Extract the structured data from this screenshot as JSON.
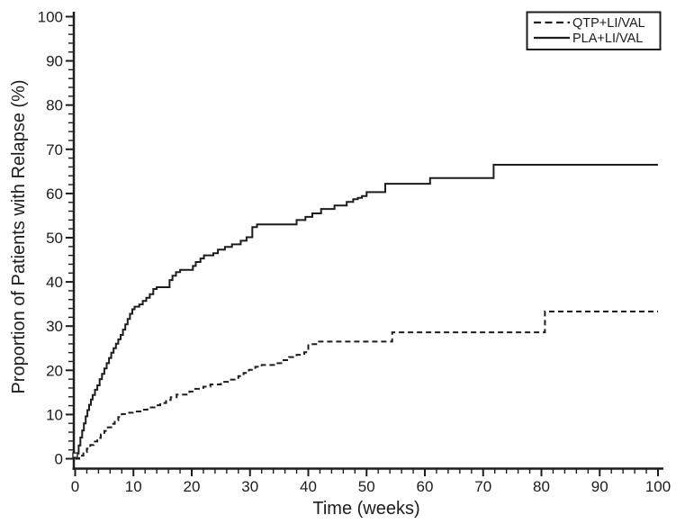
{
  "figure": {
    "background": "#ffffff",
    "ink_color": "#1c1c1c"
  },
  "chart_data": {
    "type": "line",
    "subtype": "kaplan-meier-step",
    "title": "",
    "xlabel": "Time (weeks)",
    "ylabel": "Proportion of Patients with Relapse (%)",
    "xlim": [
      0,
      100
    ],
    "ylim": [
      0,
      100
    ],
    "x_major_ticks": [
      0,
      10,
      20,
      30,
      40,
      50,
      60,
      70,
      80,
      90,
      100
    ],
    "y_major_ticks": [
      0,
      10,
      20,
      30,
      40,
      50,
      60,
      70,
      80,
      90,
      100
    ],
    "x_minor_step": 2,
    "y_minor_step": 2,
    "grid": false,
    "legend": {
      "position": "top-right",
      "border_color": "#1c1c1c",
      "entries": [
        "QTP+LI/VAL",
        "PLA+LI/VAL"
      ]
    },
    "origin_marker": {
      "shape": "open-square",
      "x": 0,
      "y": 0.8
    },
    "series": [
      {
        "name": "QTP+LI/VAL",
        "line_style": "dashed",
        "color": "#1c1c1c",
        "points": [
          [
            0,
            0
          ],
          [
            0.7,
            0.7
          ],
          [
            1.4,
            1.5
          ],
          [
            2,
            2.3
          ],
          [
            2.6,
            3.1
          ],
          [
            3.2,
            3.9
          ],
          [
            3.8,
            4.7
          ],
          [
            4.4,
            5.5
          ],
          [
            5,
            6.3
          ],
          [
            5.6,
            7.1
          ],
          [
            6.2,
            7.9
          ],
          [
            6.8,
            8.7
          ],
          [
            7.4,
            9.4
          ],
          [
            8,
            10.1
          ],
          [
            9,
            10.4
          ],
          [
            10.2,
            10.7
          ],
          [
            11.4,
            11.1
          ],
          [
            12.4,
            11.6
          ],
          [
            13.6,
            12.1
          ],
          [
            14.6,
            12.6
          ],
          [
            15.6,
            13.3
          ],
          [
            16.4,
            13.9
          ],
          [
            17.4,
            14.5
          ],
          [
            19.6,
            15.2
          ],
          [
            20.4,
            15.8
          ],
          [
            22,
            16.3
          ],
          [
            23.2,
            16.8
          ],
          [
            25,
            17.4
          ],
          [
            26.4,
            17.9
          ],
          [
            28,
            18.7
          ],
          [
            28.9,
            19.4
          ],
          [
            29.8,
            20.1
          ],
          [
            30.9,
            20.8
          ],
          [
            32,
            21.2
          ],
          [
            34.4,
            21.6
          ],
          [
            35.5,
            22.3
          ],
          [
            36.7,
            23
          ],
          [
            38,
            23.5
          ],
          [
            39.3,
            24.1
          ],
          [
            40,
            25.9
          ],
          [
            41.6,
            26.5
          ],
          [
            54.4,
            28.6
          ],
          [
            80.6,
            33.3
          ],
          [
            100,
            33.3
          ]
        ]
      },
      {
        "name": "PLA+LI/VAL",
        "line_style": "solid",
        "color": "#1c1c1c",
        "points": [
          [
            0,
            0
          ],
          [
            0.3,
            1.2
          ],
          [
            0.6,
            3
          ],
          [
            0.9,
            4.8
          ],
          [
            1.2,
            6.4
          ],
          [
            1.5,
            8
          ],
          [
            1.8,
            9.6
          ],
          [
            2.1,
            11
          ],
          [
            2.4,
            12.2
          ],
          [
            2.7,
            13.4
          ],
          [
            3,
            14.4
          ],
          [
            3.4,
            15.6
          ],
          [
            3.8,
            16.6
          ],
          [
            4.2,
            18
          ],
          [
            4.6,
            19.2
          ],
          [
            5,
            20.4
          ],
          [
            5.4,
            21.6
          ],
          [
            5.8,
            22.8
          ],
          [
            6.2,
            24
          ],
          [
            6.6,
            25
          ],
          [
            7,
            26
          ],
          [
            7.4,
            27
          ],
          [
            7.8,
            28
          ],
          [
            8.2,
            29.2
          ],
          [
            8.6,
            30.4
          ],
          [
            9,
            31.6
          ],
          [
            9.4,
            32.8
          ],
          [
            9.8,
            33.8
          ],
          [
            10.2,
            34.4
          ],
          [
            11,
            34.9
          ],
          [
            11.6,
            35.7
          ],
          [
            12.2,
            36.4
          ],
          [
            12.8,
            37.2
          ],
          [
            13.4,
            38.4
          ],
          [
            14,
            38.8
          ],
          [
            16.2,
            40.4
          ],
          [
            16.7,
            41.4
          ],
          [
            17.3,
            42.2
          ],
          [
            18,
            42.7
          ],
          [
            20.2,
            43.6
          ],
          [
            20.7,
            44.5
          ],
          [
            21.5,
            45.3
          ],
          [
            22.1,
            46
          ],
          [
            23.7,
            46.5
          ],
          [
            24.5,
            47.3
          ],
          [
            25.7,
            47.9
          ],
          [
            26.9,
            48.5
          ],
          [
            28.4,
            49.3
          ],
          [
            29.4,
            50.1
          ],
          [
            30.4,
            52.4
          ],
          [
            31.2,
            53
          ],
          [
            38,
            54
          ],
          [
            39.5,
            54.7
          ],
          [
            40.7,
            55.5
          ],
          [
            42.2,
            56.5
          ],
          [
            44.5,
            57.3
          ],
          [
            46.6,
            58.1
          ],
          [
            47.7,
            58.7
          ],
          [
            48.5,
            59
          ],
          [
            49.2,
            59.4
          ],
          [
            50,
            60.3
          ],
          [
            53.2,
            62.2
          ],
          [
            60.9,
            63.5
          ],
          [
            71.8,
            66.5
          ],
          [
            100,
            66.5
          ]
        ]
      }
    ]
  }
}
